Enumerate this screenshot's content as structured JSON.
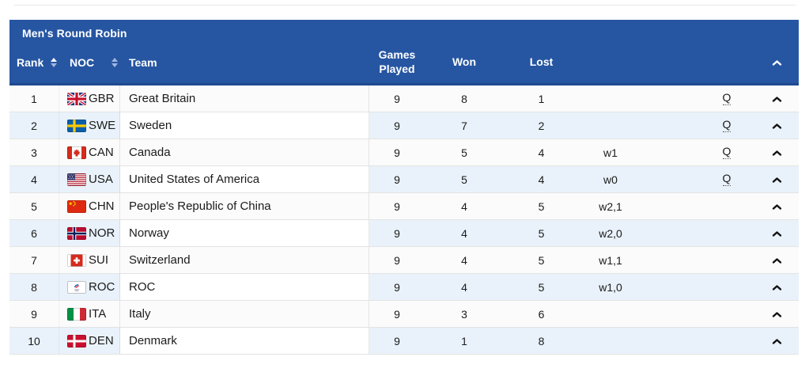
{
  "page": {
    "background": "#ffffff",
    "top_rule_color": "#e9e9e9"
  },
  "table": {
    "title": "Men's Round Robin",
    "colors": {
      "header_bg": "#2656a2",
      "header_border": "#1d4a8f",
      "header_text": "#ffffff",
      "row_bg": "#fbfbfb",
      "row_alt_bg": "#e9f2fa",
      "row_divider": "#e3e3e3",
      "body_text": "#1b1b1b"
    },
    "columns": {
      "rank": "Rank",
      "noc": "NOC",
      "team": "Team",
      "games_played": "Games Played",
      "won": "Won",
      "lost": "Lost"
    },
    "icons": {
      "rank_sort": "sort-icon",
      "noc_sort": "sort-icon",
      "header_collapse": "chevron-up-icon",
      "row_collapse": "chevron-up-icon"
    },
    "rows": [
      {
        "rank": "1",
        "noc": "GBR",
        "flag_icon": "flag-gbr",
        "team": "Great Britain",
        "games_played": "9",
        "won": "8",
        "lost": "1",
        "note": "",
        "qualified": "Q"
      },
      {
        "rank": "2",
        "noc": "SWE",
        "flag_icon": "flag-swe",
        "team": "Sweden",
        "games_played": "9",
        "won": "7",
        "lost": "2",
        "note": "",
        "qualified": "Q"
      },
      {
        "rank": "3",
        "noc": "CAN",
        "flag_icon": "flag-can",
        "team": "Canada",
        "games_played": "9",
        "won": "5",
        "lost": "4",
        "note": "w1",
        "qualified": "Q"
      },
      {
        "rank": "4",
        "noc": "USA",
        "flag_icon": "flag-usa",
        "team": "United States of America",
        "games_played": "9",
        "won": "5",
        "lost": "4",
        "note": "w0",
        "qualified": "Q"
      },
      {
        "rank": "5",
        "noc": "CHN",
        "flag_icon": "flag-chn",
        "team": "People's Republic of China",
        "games_played": "9",
        "won": "4",
        "lost": "5",
        "note": "w2,1",
        "qualified": ""
      },
      {
        "rank": "6",
        "noc": "NOR",
        "flag_icon": "flag-nor",
        "team": "Norway",
        "games_played": "9",
        "won": "4",
        "lost": "5",
        "note": "w2,0",
        "qualified": ""
      },
      {
        "rank": "7",
        "noc": "SUI",
        "flag_icon": "flag-sui",
        "team": "Switzerland",
        "games_played": "9",
        "won": "4",
        "lost": "5",
        "note": "w1,1",
        "qualified": ""
      },
      {
        "rank": "8",
        "noc": "ROC",
        "flag_icon": "flag-roc",
        "team": "ROC",
        "games_played": "9",
        "won": "4",
        "lost": "5",
        "note": "w1,0",
        "qualified": ""
      },
      {
        "rank": "9",
        "noc": "ITA",
        "flag_icon": "flag-ita",
        "team": "Italy",
        "games_played": "9",
        "won": "3",
        "lost": "6",
        "note": "",
        "qualified": ""
      },
      {
        "rank": "10",
        "noc": "DEN",
        "flag_icon": "flag-den",
        "team": "Denmark",
        "games_played": "9",
        "won": "1",
        "lost": "8",
        "note": "",
        "qualified": ""
      }
    ]
  }
}
